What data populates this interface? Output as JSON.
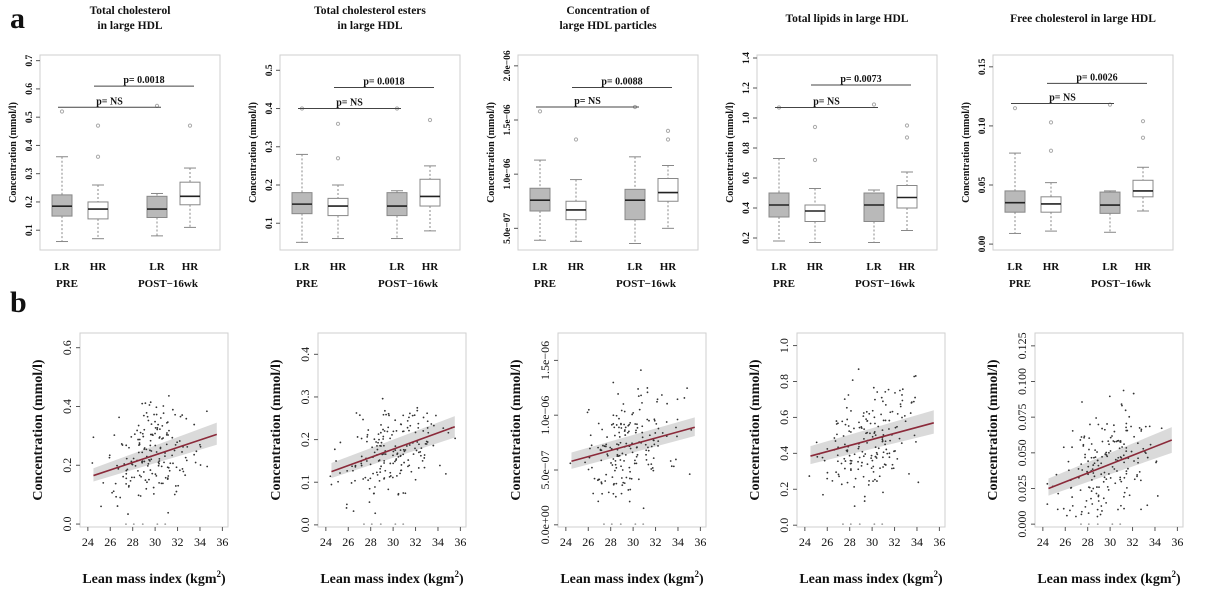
{
  "figure": {
    "label_a": "a",
    "label_b": "b"
  },
  "colors": {
    "box_lr": "#b9b9b9",
    "box_hr": "#ffffff",
    "trend_line": "#8b2a3a",
    "ci_band": "#d3d3d3",
    "points": "#333333",
    "frame": "#cfcfcf"
  },
  "chart_data": [
    {
      "type": "box",
      "panel": "a1",
      "title": [
        "Total cholesterol",
        "in large HDL"
      ],
      "ylabel": "Concentration (mmol/l)",
      "yticks": [
        "0.1",
        "0.2",
        "0.3",
        "0.4",
        "0.5",
        "0.6",
        "0.7"
      ],
      "ytick_values": [
        0.1,
        0.2,
        0.3,
        0.4,
        0.5,
        0.6,
        0.7
      ],
      "ylim": [
        0.03,
        0.72
      ],
      "groups": [
        "LR",
        "HR",
        "LR",
        "HR"
      ],
      "periods": [
        "PRE",
        "POST−16wk"
      ],
      "boxes": [
        {
          "q1": 0.15,
          "median": 0.185,
          "q3": 0.225,
          "whislo": 0.06,
          "whishi": 0.36,
          "fliers": [
            0.52
          ]
        },
        {
          "q1": 0.14,
          "median": 0.175,
          "q3": 0.2,
          "whislo": 0.07,
          "whishi": 0.26,
          "fliers": [
            0.36,
            0.47
          ]
        },
        {
          "q1": 0.145,
          "median": 0.175,
          "q3": 0.22,
          "whislo": 0.08,
          "whishi": 0.23,
          "fliers": [
            0.54
          ]
        },
        {
          "q1": 0.19,
          "median": 0.22,
          "q3": 0.27,
          "whislo": 0.11,
          "whishi": 0.32,
          "fliers": [
            0.47
          ]
        }
      ],
      "brackets": [
        {
          "label": "p= 0.0018",
          "from": 1,
          "to": 3,
          "y": 0.61
        },
        {
          "label": "p= NS",
          "from": 0,
          "to": 2,
          "y": 0.535
        }
      ]
    },
    {
      "type": "box",
      "panel": "a2",
      "title": [
        "Total cholesterol esters",
        "in large HDL"
      ],
      "ylabel": "Concentration (mmol/l)",
      "yticks": [
        "0.1",
        "0.2",
        "0.3",
        "0.4",
        "0.5"
      ],
      "ytick_values": [
        0.1,
        0.2,
        0.3,
        0.4,
        0.5
      ],
      "ylim": [
        0.03,
        0.54
      ],
      "groups": [
        "LR",
        "HR",
        "LR",
        "HR"
      ],
      "periods": [
        "PRE",
        "POST−16wk"
      ],
      "boxes": [
        {
          "q1": 0.125,
          "median": 0.15,
          "q3": 0.18,
          "whislo": 0.05,
          "whishi": 0.28,
          "fliers": [
            0.4
          ]
        },
        {
          "q1": 0.12,
          "median": 0.145,
          "q3": 0.165,
          "whislo": 0.06,
          "whishi": 0.2,
          "fliers": [
            0.27,
            0.36
          ]
        },
        {
          "q1": 0.12,
          "median": 0.145,
          "q3": 0.18,
          "whislo": 0.06,
          "whishi": 0.185,
          "fliers": [
            0.4
          ]
        },
        {
          "q1": 0.145,
          "median": 0.17,
          "q3": 0.215,
          "whislo": 0.08,
          "whishi": 0.25,
          "fliers": [
            0.37
          ]
        }
      ],
      "brackets": [
        {
          "label": "p= 0.0018",
          "from": 1,
          "to": 3,
          "y": 0.455
        },
        {
          "label": "p= NS",
          "from": 0,
          "to": 2,
          "y": 0.4
        }
      ]
    },
    {
      "type": "box",
      "panel": "a3",
      "title": [
        "Concentration of",
        "large HDL particles"
      ],
      "ylabel": "Concentration (mmol/l)",
      "yticks": [
        "5.0e−07",
        "1.0e−06",
        "1.5e−06",
        "2.0e−06"
      ],
      "ytick_values": [
        5e-07,
        1e-06,
        1.5e-06,
        2e-06
      ],
      "ylim": [
        3e-07,
        2.1e-06
      ],
      "groups": [
        "LR",
        "HR",
        "LR",
        "HR"
      ],
      "periods": [
        "PRE",
        "POST−16wk"
      ],
      "boxes": [
        {
          "q1": 6.6e-07,
          "median": 7.6e-07,
          "q3": 8.7e-07,
          "whislo": 3.9e-07,
          "whishi": 1.13e-06,
          "fliers": [
            1.58e-06
          ]
        },
        {
          "q1": 5.8e-07,
          "median": 6.7e-07,
          "q3": 7.5e-07,
          "whislo": 3.8e-07,
          "whishi": 9.5e-07,
          "fliers": [
            1.32e-06
          ]
        },
        {
          "q1": 5.8e-07,
          "median": 7.6e-07,
          "q3": 8.6e-07,
          "whislo": 3.6e-07,
          "whishi": 1.16e-06,
          "fliers": [
            1.62e-06
          ]
        },
        {
          "q1": 7.5e-07,
          "median": 8.3e-07,
          "q3": 9.6e-07,
          "whislo": 5e-07,
          "whishi": 1.08e-06,
          "fliers": [
            1.32e-06,
            1.4e-06
          ]
        }
      ],
      "brackets": [
        {
          "label": "p= 0.0088",
          "from": 1,
          "to": 3,
          "y": 1.8e-06
        },
        {
          "label": "p= NS",
          "from": 0,
          "to": 2,
          "y": 1.62e-06
        }
      ]
    },
    {
      "type": "box",
      "panel": "a4",
      "title": [
        "Total lipids in large HDL"
      ],
      "ylabel": "Concentration (mmol/l)",
      "yticks": [
        "0.2",
        "0.4",
        "0.6",
        "0.8",
        "1.0",
        "1.2",
        "1.4"
      ],
      "ytick_values": [
        0.2,
        0.4,
        0.6,
        0.8,
        1.0,
        1.2,
        1.4
      ],
      "ylim": [
        0.12,
        1.42
      ],
      "groups": [
        "LR",
        "HR",
        "LR",
        "HR"
      ],
      "periods": [
        "PRE",
        "POST−16wk"
      ],
      "boxes": [
        {
          "q1": 0.34,
          "median": 0.42,
          "q3": 0.5,
          "whislo": 0.18,
          "whishi": 0.73,
          "fliers": [
            1.07
          ]
        },
        {
          "q1": 0.31,
          "median": 0.38,
          "q3": 0.42,
          "whislo": 0.17,
          "whishi": 0.53,
          "fliers": [
            0.72,
            0.94
          ]
        },
        {
          "q1": 0.31,
          "median": 0.42,
          "q3": 0.5,
          "whislo": 0.17,
          "whishi": 0.52,
          "fliers": [
            1.09
          ]
        },
        {
          "q1": 0.4,
          "median": 0.47,
          "q3": 0.55,
          "whislo": 0.25,
          "whishi": 0.64,
          "fliers": [
            0.87,
            0.95
          ]
        }
      ],
      "brackets": [
        {
          "label": "p= 0.0073",
          "from": 1,
          "to": 3,
          "y": 1.22
        },
        {
          "label": "p= NS",
          "from": 0,
          "to": 2,
          "y": 1.07
        }
      ]
    },
    {
      "type": "box",
      "panel": "a5",
      "title": [
        "Free cholesterol in large HDL"
      ],
      "ylabel": "Concentration (mmol/l)",
      "yticks": [
        "0.00",
        "0.05",
        "0.10",
        "0.15"
      ],
      "ytick_values": [
        0.0,
        0.05,
        0.1,
        0.15
      ],
      "ylim": [
        -0.005,
        0.16
      ],
      "groups": [
        "LR",
        "HR",
        "LR",
        "HR"
      ],
      "periods": [
        "PRE",
        "POST−16wk"
      ],
      "boxes": [
        {
          "q1": 0.027,
          "median": 0.035,
          "q3": 0.045,
          "whislo": 0.009,
          "whishi": 0.077,
          "fliers": [
            0.115
          ]
        },
        {
          "q1": 0.027,
          "median": 0.034,
          "q3": 0.04,
          "whislo": 0.011,
          "whishi": 0.052,
          "fliers": [
            0.079,
            0.103
          ]
        },
        {
          "q1": 0.026,
          "median": 0.033,
          "q3": 0.044,
          "whislo": 0.01,
          "whishi": 0.045,
          "fliers": [
            0.118
          ]
        },
        {
          "q1": 0.04,
          "median": 0.045,
          "q3": 0.054,
          "whislo": 0.028,
          "whishi": 0.065,
          "fliers": [
            0.09,
            0.104
          ]
        }
      ],
      "brackets": [
        {
          "label": "p= 0.0026",
          "from": 1,
          "to": 3,
          "y": 0.136
        },
        {
          "label": "p= NS",
          "from": 0,
          "to": 2,
          "y": 0.119
        }
      ]
    },
    {
      "type": "scatter",
      "panel": "b1",
      "ylabel": "Concentration (mmol/l)",
      "xlabel": "Lean mass index (kgm",
      "xlabel_sup": "2",
      "xlabel_end": ")",
      "xticks": [
        "24",
        "26",
        "28",
        "30",
        "32",
        "34",
        "36"
      ],
      "xtick_values": [
        24,
        26,
        28,
        30,
        32,
        34,
        36
      ],
      "xlim": [
        23.3,
        36.5
      ],
      "yticks": [
        "0.0",
        "0.2",
        "0.4",
        "0.6"
      ],
      "ytick_values": [
        0.0,
        0.2,
        0.4,
        0.6
      ],
      "ylim": [
        -0.01,
        0.65
      ],
      "fit": {
        "x0": 24.5,
        "y0": 0.165,
        "x1": 35.5,
        "y1": 0.305
      },
      "ci": {
        "lo0": 0.145,
        "hi0": 0.19,
        "lo1": 0.27,
        "hi1": 0.345
      },
      "spread": 0.08,
      "scatter_seed": 11
    },
    {
      "type": "scatter",
      "panel": "b2",
      "ylabel": "Concentration (mmol/l)",
      "xlabel": "Lean mass index (kgm",
      "xlabel_sup": "2",
      "xlabel_end": ")",
      "xticks": [
        "24",
        "26",
        "28",
        "30",
        "32",
        "34",
        "36"
      ],
      "xtick_values": [
        24,
        26,
        28,
        30,
        32,
        34,
        36
      ],
      "xlim": [
        23.3,
        36.5
      ],
      "yticks": [
        "0.0",
        "0.1",
        "0.2",
        "0.3",
        "0.4"
      ],
      "ytick_values": [
        0.0,
        0.1,
        0.2,
        0.3,
        0.4
      ],
      "ylim": [
        -0.005,
        0.45
      ],
      "fit": {
        "x0": 24.5,
        "y0": 0.125,
        "x1": 35.5,
        "y1": 0.23
      },
      "ci": {
        "lo0": 0.11,
        "hi0": 0.145,
        "lo1": 0.205,
        "hi1": 0.255
      },
      "spread": 0.055,
      "scatter_seed": 23
    },
    {
      "type": "scatter",
      "panel": "b3",
      "ylabel": "Concentration (mmol/l)",
      "xlabel": "Lean mass index (kgm",
      "xlabel_sup": "2",
      "xlabel_end": ")",
      "xticks": [
        "24",
        "26",
        "28",
        "30",
        "32",
        "34",
        "36"
      ],
      "xtick_values": [
        24,
        26,
        28,
        30,
        32,
        34,
        36
      ],
      "xlim": [
        23.3,
        36.5
      ],
      "yticks": [
        "0.0e+00",
        "5.0e−07",
        "1.0e−06",
        "1.5e−06"
      ],
      "ytick_values": [
        0.0,
        5e-07,
        1e-06,
        1.5e-06
      ],
      "ylim": [
        -2e-08,
        1.75e-06
      ],
      "fit": {
        "x0": 24.5,
        "y0": 5.8e-07,
        "x1": 35.5,
        "y1": 8.9e-07
      },
      "ci": {
        "lo0": 5.1e-07,
        "hi0": 6.6e-07,
        "lo1": 8.1e-07,
        "hi1": 9.8e-07
      },
      "spread": 2.4e-07,
      "scatter_seed": 37
    },
    {
      "type": "scatter",
      "panel": "b4",
      "ylabel": "Concentration (mmol/l)",
      "xlabel": "Lean mass index (kgm",
      "xlabel_sup": "2",
      "xlabel_end": ")",
      "xticks": [
        "24",
        "26",
        "28",
        "30",
        "32",
        "34",
        "36"
      ],
      "xtick_values": [
        24,
        26,
        28,
        30,
        32,
        34,
        36
      ],
      "xlim": [
        23.3,
        36.5
      ],
      "yticks": [
        "0.0",
        "0.2",
        "0.4",
        "0.6",
        "0.8",
        "1.0"
      ],
      "ytick_values": [
        0.0,
        0.2,
        0.4,
        0.6,
        0.8,
        1.0
      ],
      "ylim": [
        -0.01,
        1.07
      ],
      "fit": {
        "x0": 24.5,
        "y0": 0.385,
        "x1": 35.5,
        "y1": 0.57
      },
      "ci": {
        "lo0": 0.34,
        "hi0": 0.44,
        "lo1": 0.51,
        "hi1": 0.64
      },
      "spread": 0.15,
      "scatter_seed": 53
    },
    {
      "type": "scatter",
      "panel": "b5",
      "ylabel": "Concentration (mmol/l)",
      "xlabel": "Lean mass index (kgm",
      "xlabel_sup": "2",
      "xlabel_end": ")",
      "xticks": [
        "24",
        "26",
        "28",
        "30",
        "32",
        "34",
        "36"
      ],
      "xtick_values": [
        24,
        26,
        28,
        30,
        32,
        34,
        36
      ],
      "xlim": [
        23.3,
        36.5
      ],
      "yticks": [
        "0.000",
        "0.025",
        "0.050",
        "0.075",
        "0.100",
        "0.125"
      ],
      "ytick_values": [
        0.0,
        0.025,
        0.05,
        0.075,
        0.1,
        0.125
      ],
      "ylim": [
        -0.002,
        0.134
      ],
      "fit": {
        "x0": 24.5,
        "y0": 0.025,
        "x1": 35.5,
        "y1": 0.059
      },
      "ci": {
        "lo0": 0.02,
        "hi0": 0.032,
        "lo1": 0.05,
        "hi1": 0.068
      },
      "spread": 0.02,
      "scatter_seed": 71
    }
  ]
}
